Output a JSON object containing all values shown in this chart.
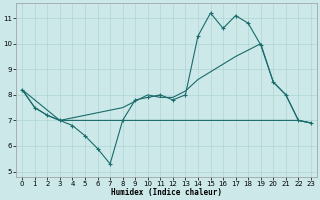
{
  "xlabel": "Humidex (Indice chaleur)",
  "xlim": [
    -0.5,
    23.5
  ],
  "ylim": [
    4.8,
    11.6
  ],
  "yticks": [
    5,
    6,
    7,
    8,
    9,
    10,
    11
  ],
  "xticks": [
    0,
    1,
    2,
    3,
    4,
    5,
    6,
    7,
    8,
    9,
    10,
    11,
    12,
    13,
    14,
    15,
    16,
    17,
    18,
    19,
    20,
    21,
    22,
    23
  ],
  "bg_color": "#cce8e8",
  "line_color": "#1a6b6b",
  "grid_color": "#aed4d4",
  "line1_x": [
    0,
    1,
    2,
    3,
    4,
    5,
    6,
    7,
    8,
    9,
    10,
    11,
    12,
    13,
    14,
    15,
    16,
    17,
    18,
    19,
    20,
    21,
    22,
    23
  ],
  "line1_y": [
    8.2,
    7.5,
    7.2,
    7.0,
    6.8,
    6.4,
    5.9,
    5.3,
    7.0,
    7.8,
    7.9,
    8.0,
    7.8,
    8.0,
    10.3,
    11.2,
    10.6,
    11.1,
    10.8,
    9.95,
    8.5,
    8.0,
    7.0,
    6.9
  ],
  "line2_x": [
    0,
    1,
    2,
    3,
    8,
    10,
    11,
    12,
    13,
    14,
    17,
    19,
    20,
    21,
    22,
    23
  ],
  "line2_y": [
    8.2,
    7.5,
    7.2,
    7.0,
    7.5,
    8.0,
    7.9,
    7.9,
    8.15,
    8.6,
    9.5,
    10.0,
    8.5,
    8.0,
    7.0,
    6.9
  ],
  "line3_x": [
    0,
    3,
    10,
    14,
    21,
    22,
    23
  ],
  "line3_y": [
    8.2,
    7.0,
    7.0,
    7.0,
    7.0,
    7.0,
    6.9
  ]
}
